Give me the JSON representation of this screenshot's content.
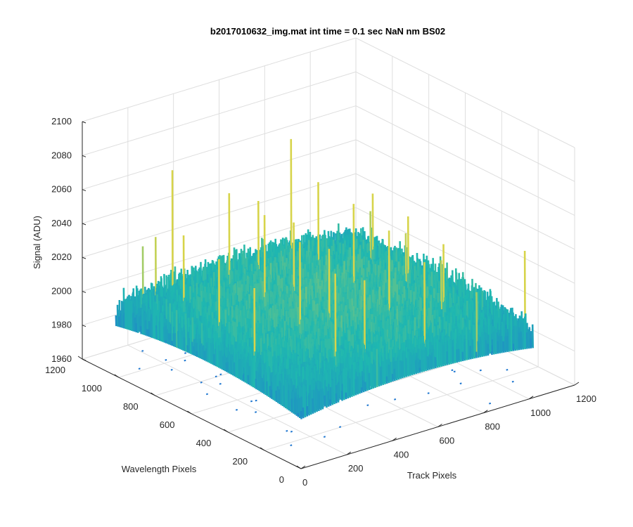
{
  "chart_data": {
    "type": "surface",
    "title": "b2017010632_img.mat int time = 0.1 sec  NaN nm BS02",
    "xlabel": "Track Pixels",
    "ylabel": "Wavelength Pixels",
    "zlabel": "Signal (ADU)",
    "xlim": [
      0,
      1200
    ],
    "ylim": [
      0,
      1200
    ],
    "zlim": [
      1960,
      2100
    ],
    "x_ticks": [
      "0",
      "200",
      "400",
      "600",
      "800",
      "1000",
      "1200"
    ],
    "y_ticks": [
      "0",
      "200",
      "400",
      "600",
      "800",
      "1000",
      "1200"
    ],
    "z_ticks": [
      "1960",
      "1980",
      "2000",
      "2020",
      "2040",
      "2060",
      "2080",
      "2100"
    ],
    "grid": true,
    "colormap": "parula",
    "surface": {
      "description_values": {
        "mean_signal": 2005,
        "edge_signal": 2000,
        "center_signal": 2012,
        "noise_amplitude": 14,
        "max_spike": 2100,
        "min_dip": 1960
      },
      "grid_size": [
        1024,
        1024
      ]
    },
    "colors": {
      "axis": "#262626",
      "grid": "#dedede",
      "low": "#1f77d0",
      "mid": "#1fb8b0",
      "high": "#d7d44a"
    }
  }
}
